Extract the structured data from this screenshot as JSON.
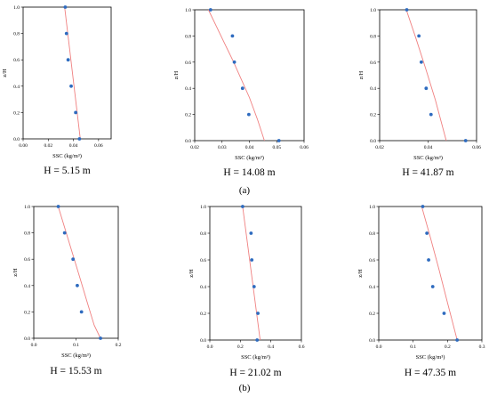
{
  "row_labels": [
    "(a)",
    "(b)"
  ],
  "chart_data": [
    {
      "type": "scatter",
      "panel_label": "H = 5.15 m",
      "xlabel": "SSC (kg/m³)",
      "ylabel": "z/H",
      "xlim": [
        0,
        0.07
      ],
      "ylim": [
        0,
        1.0
      ],
      "xticks": [
        0.0,
        0.02,
        0.04,
        0.06
      ],
      "xtick_labels": [
        "0.00",
        "0.02",
        "0.04",
        "0.06"
      ],
      "yticks": [
        0.0,
        0.2,
        0.4,
        0.6,
        0.8,
        1.0
      ],
      "ytick_labels": [
        "0.0",
        "0.2",
        "0.4",
        "0.6",
        "0.8",
        "1.0"
      ],
      "points": {
        "x": [
          0.0335,
          0.0345,
          0.0358,
          0.0382,
          0.0418,
          0.0448
        ],
        "y": [
          1.0,
          0.8,
          0.6,
          0.4,
          0.2,
          0.0
        ]
      },
      "fit_line": {
        "x": [
          0.033,
          0.0455
        ],
        "y": [
          1.0,
          0.0
        ]
      },
      "colors": {
        "points": "#2e6bbf",
        "fit": "#f08080"
      }
    },
    {
      "type": "scatter",
      "panel_label": "H = 14.08 m",
      "xlabel": "SSC (kg/m³)",
      "ylabel": "z/H",
      "xlim": [
        0.02,
        0.06
      ],
      "ylim": [
        0,
        1.0
      ],
      "xticks": [
        0.02,
        0.03,
        0.04,
        0.05,
        0.06
      ],
      "xtick_labels": [
        "0.02",
        "0.03",
        "0.04",
        "0.05",
        "0.06"
      ],
      "yticks": [
        0.0,
        0.2,
        0.4,
        0.6,
        0.8,
        1.0
      ],
      "ytick_labels": [
        "0.0",
        "0.2",
        "0.4",
        "0.6",
        "0.8",
        "1.0"
      ],
      "points": {
        "x": [
          0.0258,
          0.0338,
          0.0345,
          0.0375,
          0.0398,
          0.0508
        ],
        "y": [
          1.0,
          0.8,
          0.6,
          0.4,
          0.2,
          0.0
        ]
      },
      "fit_line": {
        "x": [
          0.025,
          0.028,
          0.031,
          0.034,
          0.037,
          0.04,
          0.043,
          0.0455
        ],
        "y": [
          1.0,
          0.87,
          0.74,
          0.61,
          0.47,
          0.33,
          0.16,
          0.0
        ]
      },
      "colors": {
        "points": "#2e6bbf",
        "fit": "#f08080"
      }
    },
    {
      "type": "scatter",
      "panel_label": "H = 41.87 m",
      "xlabel": "SSC (kg/m³)",
      "ylabel": "z/H",
      "xlim": [
        0.02,
        0.06
      ],
      "ylim": [
        0,
        1.0
      ],
      "xticks": [
        0.02,
        0.04,
        0.06
      ],
      "xtick_labels": [
        "0.02",
        "0.04",
        "0.06"
      ],
      "yticks": [
        0.0,
        0.2,
        0.4,
        0.6,
        0.8,
        1.0
      ],
      "ytick_labels": [
        "0.0",
        "0.2",
        "0.4",
        "0.6",
        "0.8",
        "1.0"
      ],
      "points": {
        "x": [
          0.0312,
          0.0362,
          0.0372,
          0.0392,
          0.0412,
          0.0555
        ],
        "y": [
          1.0,
          0.8,
          0.6,
          0.4,
          0.2,
          0.0
        ]
      },
      "fit_line": {
        "x": [
          0.031,
          0.035,
          0.039,
          0.043,
          0.0475
        ],
        "y": [
          1.0,
          0.78,
          0.55,
          0.31,
          0.0
        ]
      },
      "colors": {
        "points": "#2e6bbf",
        "fit": "#f08080"
      }
    },
    {
      "type": "scatter",
      "panel_label": "H = 15.53 m",
      "xlabel": "SSC (kg/m³)",
      "ylabel": "z/H",
      "xlim": [
        0,
        0.2
      ],
      "ylim": [
        0,
        1.0
      ],
      "xticks": [
        0.0,
        0.1,
        0.2
      ],
      "xtick_labels": [
        "0.0",
        "0.1",
        "0.2"
      ],
      "yticks": [
        0.0,
        0.2,
        0.4,
        0.6,
        0.8,
        1.0
      ],
      "ytick_labels": [
        "0.0",
        "0.2",
        "0.4",
        "0.6",
        "0.8",
        "1.0"
      ],
      "points": {
        "x": [
          0.058,
          0.073,
          0.093,
          0.103,
          0.113,
          0.158
        ],
        "y": [
          1.0,
          0.8,
          0.6,
          0.4,
          0.2,
          0.0
        ]
      },
      "fit_line": {
        "x": [
          0.058,
          0.075,
          0.092,
          0.109,
          0.126,
          0.143,
          0.158
        ],
        "y": [
          1.0,
          0.82,
          0.64,
          0.46,
          0.28,
          0.1,
          0.0
        ]
      },
      "colors": {
        "points": "#2e6bbf",
        "fit": "#f08080"
      }
    },
    {
      "type": "scatter",
      "panel_label": "H = 21.02 m",
      "xlabel": "SSC (kg/m³)",
      "ylabel": "z/H",
      "xlim": [
        0,
        0.6
      ],
      "ylim": [
        0,
        1.0
      ],
      "xticks": [
        0.0,
        0.2,
        0.4,
        0.6
      ],
      "xtick_labels": [
        "0.0",
        "0.2",
        "0.4",
        "0.6"
      ],
      "yticks": [
        0.0,
        0.2,
        0.4,
        0.6,
        0.8,
        1.0
      ],
      "ytick_labels": [
        "0.0",
        "0.2",
        "0.4",
        "0.6",
        "0.8",
        "1.0"
      ],
      "points": {
        "x": [
          0.215,
          0.27,
          0.275,
          0.29,
          0.315,
          0.31
        ],
        "y": [
          1.0,
          0.8,
          0.6,
          0.4,
          0.2,
          0.0
        ]
      },
      "fit_line": {
        "x": [
          0.215,
          0.33
        ],
        "y": [
          1.0,
          0.0
        ]
      },
      "colors": {
        "points": "#2e6bbf",
        "fit": "#f08080"
      }
    },
    {
      "type": "scatter",
      "panel_label": "H = 47.35 m",
      "xlabel": "SSC (kg/m³)",
      "ylabel": "z/H",
      "xlim": [
        0,
        0.3
      ],
      "ylim": [
        0,
        1.0
      ],
      "xticks": [
        0.0,
        0.1,
        0.2,
        0.3
      ],
      "xtick_labels": [
        "0.0",
        "0.1",
        "0.2",
        "0.3"
      ],
      "yticks": [
        0.0,
        0.2,
        0.4,
        0.6,
        0.8,
        1.0
      ],
      "ytick_labels": [
        "0.0",
        "0.2",
        "0.4",
        "0.6",
        "0.8",
        "1.0"
      ],
      "points": {
        "x": [
          0.128,
          0.14,
          0.145,
          0.157,
          0.19,
          0.228
        ],
        "y": [
          1.0,
          0.8,
          0.6,
          0.4,
          0.2,
          0.0
        ]
      },
      "fit_line": {
        "x": [
          0.125,
          0.15,
          0.175,
          0.2,
          0.228
        ],
        "y": [
          1.0,
          0.77,
          0.53,
          0.28,
          0.0
        ]
      },
      "colors": {
        "points": "#2e6bbf",
        "fit": "#f08080"
      }
    }
  ]
}
